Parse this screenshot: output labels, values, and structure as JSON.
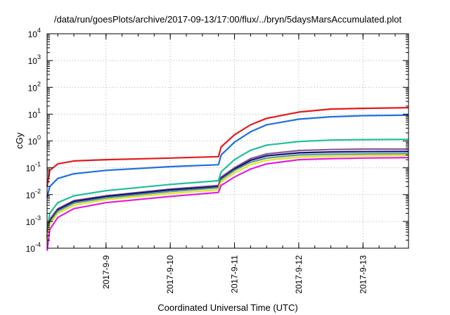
{
  "chart_data": {
    "type": "line",
    "title": "/data/run/goesPlots/archive/2017-09-13/17:00/flux/../bryn/5daysMarsAccumulated.plot",
    "xlabel": "Coordinated Universal Time (UTC)",
    "ylabel": "cGy",
    "y_scale": "log",
    "ylim": [
      0.0001,
      10000
    ],
    "xlim": [
      "2017-09-08 02:00",
      "2017-09-13 17:00"
    ],
    "y_ticks": [
      {
        "base": "10",
        "exp": "-4",
        "value": 0.0001
      },
      {
        "base": "10",
        "exp": "-3",
        "value": 0.001
      },
      {
        "base": "10",
        "exp": "-2",
        "value": 0.01
      },
      {
        "base": "10",
        "exp": "-1",
        "value": 0.1
      },
      {
        "base": "10",
        "exp": "0",
        "value": 1
      },
      {
        "base": "10",
        "exp": "1",
        "value": 10
      },
      {
        "base": "10",
        "exp": "2",
        "value": 100
      },
      {
        "base": "10",
        "exp": "3",
        "value": 1000
      },
      {
        "base": "10",
        "exp": "4",
        "value": 10000
      }
    ],
    "x_ticks": [
      "2017-9-9",
      "2017-9-10",
      "2017-9-11",
      "2017-9-12",
      "2017-9-13"
    ],
    "grid": true,
    "legend": "none",
    "series": [
      {
        "color": "#e41a1c",
        "points": [
          [
            "2017-09-08 02:00",
            0.02
          ],
          [
            "2017-09-08 03:00",
            0.08
          ],
          [
            "2017-09-08 06:00",
            0.14
          ],
          [
            "2017-09-08 12:00",
            0.18
          ],
          [
            "2017-09-09 00:00",
            0.2
          ],
          [
            "2017-09-10 00:00",
            0.23
          ],
          [
            "2017-09-10 18:00",
            0.26
          ],
          [
            "2017-09-10 19:00",
            0.6
          ],
          [
            "2017-09-11 00:00",
            1.7
          ],
          [
            "2017-09-11 06:00",
            4.0
          ],
          [
            "2017-09-11 12:00",
            7.0
          ],
          [
            "2017-09-12 00:00",
            12.0
          ],
          [
            "2017-09-12 12:00",
            15.5
          ],
          [
            "2017-09-13 00:00",
            16.5
          ],
          [
            "2017-09-13 17:00",
            17.5
          ]
        ]
      },
      {
        "color": "#1f6fe0",
        "points": [
          [
            "2017-09-08 02:00",
            0.008
          ],
          [
            "2017-09-08 03:00",
            0.02
          ],
          [
            "2017-09-08 06:00",
            0.04
          ],
          [
            "2017-09-08 12:00",
            0.06
          ],
          [
            "2017-09-09 00:00",
            0.08
          ],
          [
            "2017-09-10 00:00",
            0.11
          ],
          [
            "2017-09-10 18:00",
            0.13
          ],
          [
            "2017-09-10 19:00",
            0.3
          ],
          [
            "2017-09-11 00:00",
            0.9
          ],
          [
            "2017-09-11 06:00",
            2.2
          ],
          [
            "2017-09-11 12:00",
            4.0
          ],
          [
            "2017-09-12 00:00",
            6.5
          ],
          [
            "2017-09-12 12:00",
            8.0
          ],
          [
            "2017-09-13 00:00",
            8.8
          ],
          [
            "2017-09-13 17:00",
            9.2
          ]
        ]
      },
      {
        "color": "#1fbf9a",
        "points": [
          [
            "2017-09-08 02:00",
            0.0004
          ],
          [
            "2017-09-08 03:00",
            0.002
          ],
          [
            "2017-09-08 06:00",
            0.005
          ],
          [
            "2017-09-08 12:00",
            0.009
          ],
          [
            "2017-09-09 00:00",
            0.014
          ],
          [
            "2017-09-10 00:00",
            0.024
          ],
          [
            "2017-09-10 18:00",
            0.033
          ],
          [
            "2017-09-10 19:00",
            0.07
          ],
          [
            "2017-09-11 00:00",
            0.2
          ],
          [
            "2017-09-11 06:00",
            0.45
          ],
          [
            "2017-09-11 12:00",
            0.7
          ],
          [
            "2017-09-12 00:00",
            0.95
          ],
          [
            "2017-09-12 12:00",
            1.08
          ],
          [
            "2017-09-13 00:00",
            1.12
          ],
          [
            "2017-09-13 17:00",
            1.15
          ]
        ]
      },
      {
        "color": "#8a5a8a",
        "points": [
          [
            "2017-09-08 02:00",
            0.0003
          ],
          [
            "2017-09-08 03:00",
            0.0012
          ],
          [
            "2017-09-08 06:00",
            0.003
          ],
          [
            "2017-09-08 12:00",
            0.006
          ],
          [
            "2017-09-09 00:00",
            0.009
          ],
          [
            "2017-09-10 00:00",
            0.016
          ],
          [
            "2017-09-10 18:00",
            0.022
          ],
          [
            "2017-09-10 19:00",
            0.045
          ],
          [
            "2017-09-11 00:00",
            0.1
          ],
          [
            "2017-09-11 06:00",
            0.22
          ],
          [
            "2017-09-11 12:00",
            0.33
          ],
          [
            "2017-09-12 00:00",
            0.44
          ],
          [
            "2017-09-12 12:00",
            0.48
          ],
          [
            "2017-09-13 00:00",
            0.5
          ],
          [
            "2017-09-13 17:00",
            0.5
          ]
        ]
      },
      {
        "color": "#101080",
        "points": [
          [
            "2017-09-08 02:00",
            0.00025
          ],
          [
            "2017-09-08 03:00",
            0.001
          ],
          [
            "2017-09-08 06:00",
            0.0027
          ],
          [
            "2017-09-08 12:00",
            0.0055
          ],
          [
            "2017-09-09 00:00",
            0.0085
          ],
          [
            "2017-09-10 00:00",
            0.015
          ],
          [
            "2017-09-10 18:00",
            0.02
          ],
          [
            "2017-09-10 19:00",
            0.04
          ],
          [
            "2017-09-11 00:00",
            0.09
          ],
          [
            "2017-09-11 06:00",
            0.19
          ],
          [
            "2017-09-11 12:00",
            0.28
          ],
          [
            "2017-09-12 00:00",
            0.36
          ],
          [
            "2017-09-12 12:00",
            0.39
          ],
          [
            "2017-09-13 00:00",
            0.4
          ],
          [
            "2017-09-13 17:00",
            0.41
          ]
        ]
      },
      {
        "color": "#5a9a8a",
        "points": [
          [
            "2017-09-08 02:00",
            0.00022
          ],
          [
            "2017-09-08 03:00",
            0.0009
          ],
          [
            "2017-09-08 06:00",
            0.0024
          ],
          [
            "2017-09-08 12:00",
            0.0048
          ],
          [
            "2017-09-09 00:00",
            0.0075
          ],
          [
            "2017-09-10 00:00",
            0.013
          ],
          [
            "2017-09-10 18:00",
            0.018
          ],
          [
            "2017-09-10 19:00",
            0.036
          ],
          [
            "2017-09-11 00:00",
            0.08
          ],
          [
            "2017-09-11 06:00",
            0.16
          ],
          [
            "2017-09-11 12:00",
            0.23
          ],
          [
            "2017-09-12 00:00",
            0.3
          ],
          [
            "2017-09-12 12:00",
            0.32
          ],
          [
            "2017-09-13 00:00",
            0.33
          ],
          [
            "2017-09-13 17:00",
            0.34
          ]
        ]
      },
      {
        "color": "#e8e020",
        "points": [
          [
            "2017-09-08 02:00",
            0.0002
          ],
          [
            "2017-09-08 03:00",
            0.0008
          ],
          [
            "2017-09-08 06:00",
            0.002
          ],
          [
            "2017-09-08 12:00",
            0.004
          ],
          [
            "2017-09-09 00:00",
            0.0065
          ],
          [
            "2017-09-10 00:00",
            0.011
          ],
          [
            "2017-09-10 18:00",
            0.015
          ],
          [
            "2017-09-10 19:00",
            0.03
          ],
          [
            "2017-09-11 00:00",
            0.065
          ],
          [
            "2017-09-11 06:00",
            0.13
          ],
          [
            "2017-09-11 12:00",
            0.19
          ],
          [
            "2017-09-12 00:00",
            0.25
          ],
          [
            "2017-09-12 12:00",
            0.27
          ],
          [
            "2017-09-13 00:00",
            0.28
          ],
          [
            "2017-09-13 17:00",
            0.29
          ]
        ]
      },
      {
        "color": "#e020e0",
        "points": [
          [
            "2017-09-08 02:00",
            8e-05
          ],
          [
            "2017-09-08 03:00",
            0.0005
          ],
          [
            "2017-09-08 06:00",
            0.0014
          ],
          [
            "2017-09-08 12:00",
            0.003
          ],
          [
            "2017-09-09 00:00",
            0.005
          ],
          [
            "2017-09-10 00:00",
            0.0085
          ],
          [
            "2017-09-10 18:00",
            0.012
          ],
          [
            "2017-09-10 19:00",
            0.022
          ],
          [
            "2017-09-11 00:00",
            0.045
          ],
          [
            "2017-09-11 06:00",
            0.09
          ],
          [
            "2017-09-11 12:00",
            0.14
          ],
          [
            "2017-09-12 00:00",
            0.2
          ],
          [
            "2017-09-12 12:00",
            0.22
          ],
          [
            "2017-09-13 00:00",
            0.23
          ],
          [
            "2017-09-13 17:00",
            0.24
          ]
        ]
      }
    ]
  }
}
